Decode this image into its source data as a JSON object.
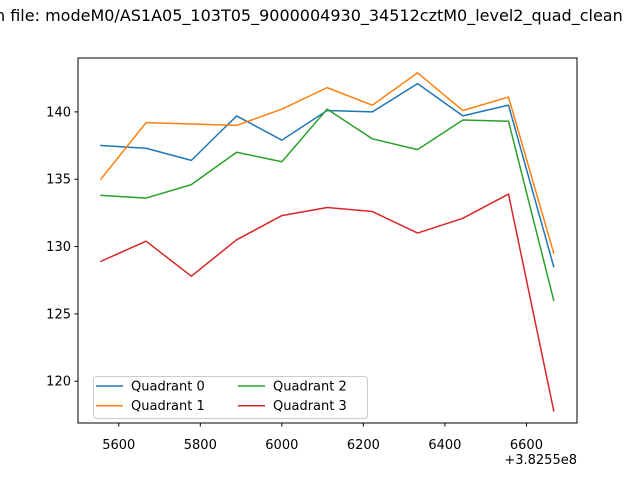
{
  "chart_data": {
    "type": "line",
    "title": "n file: modeM0/AS1A05_103T05_9000004930_34512cztM0_level2_quad_clean",
    "xlabel": "",
    "ylabel": "",
    "x_offset_label": "+3.8255e8",
    "x": [
      5556,
      5667,
      5778,
      5889,
      6000,
      6111,
      6222,
      6333,
      6444,
      6556,
      6667
    ],
    "series": [
      {
        "name": "Quadrant 0",
        "color": "#1f77b4",
        "values": [
          137.5,
          137.3,
          136.4,
          139.7,
          137.9,
          140.1,
          140.0,
          142.1,
          139.7,
          140.5,
          128.5
        ]
      },
      {
        "name": "Quadrant 1",
        "color": "#ff7f0e",
        "values": [
          135.0,
          139.2,
          139.1,
          139.0,
          140.2,
          141.8,
          140.5,
          142.9,
          140.1,
          141.1,
          129.5
        ]
      },
      {
        "name": "Quadrant 2",
        "color": "#2ca02c",
        "values": [
          133.8,
          133.6,
          134.6,
          137.0,
          136.3,
          140.2,
          138.0,
          137.2,
          139.4,
          139.3,
          126.0
        ]
      },
      {
        "name": "Quadrant 3",
        "color": "#d62728",
        "values": [
          128.9,
          130.4,
          127.8,
          130.5,
          132.3,
          132.9,
          132.6,
          131.0,
          132.1,
          133.9,
          117.8
        ]
      }
    ],
    "xlim": [
      5500,
      6724
    ],
    "ylim": [
      116.9,
      144.0
    ],
    "x_ticks": [
      5600,
      5800,
      6000,
      6200,
      6400,
      6600
    ],
    "y_ticks": [
      120,
      125,
      130,
      135,
      140
    ],
    "grid": false,
    "legend": {
      "position": "lower left",
      "columns": 2,
      "entries": [
        "Quadrant 0",
        "Quadrant 1",
        "Quadrant 2",
        "Quadrant 3"
      ]
    }
  }
}
